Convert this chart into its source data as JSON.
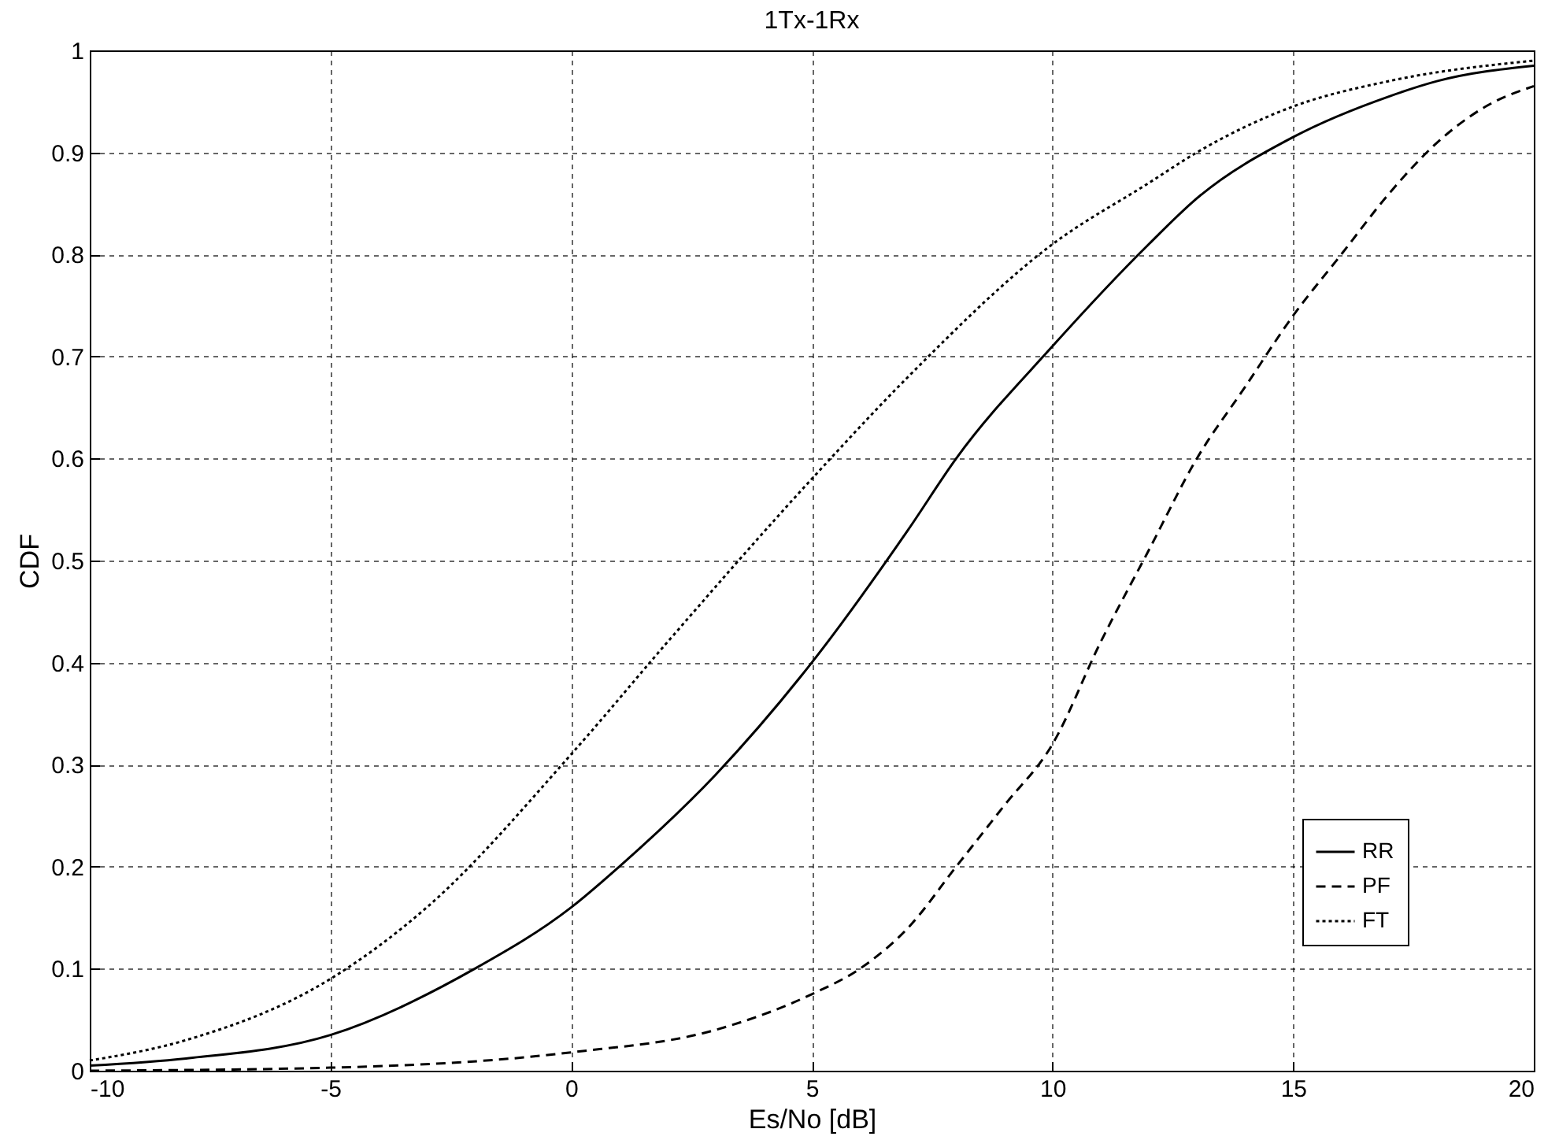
{
  "chart_data": {
    "type": "line",
    "title": "1Tx-1Rx",
    "xlabel": "Es/No [dB]",
    "ylabel": "CDF",
    "xlim": [
      -10,
      20
    ],
    "xticks": [
      -10,
      -5,
      0,
      5,
      10,
      15,
      20
    ],
    "ylim": [
      0,
      1
    ],
    "yticks": [
      0,
      0.1,
      0.2,
      0.3,
      0.4,
      0.5,
      0.6,
      0.7,
      0.8,
      0.9,
      1
    ],
    "grid": true,
    "legend": "bottom right",
    "marker": "none",
    "series": [
      {
        "name": "RR",
        "color": "#000000",
        "line_style": "solid",
        "x": [
          -10,
          -8,
          -5,
          -2,
          0,
          1,
          3,
          5,
          7,
          8,
          10,
          12,
          13,
          15,
          17,
          18,
          20
        ],
        "values": [
          0.005,
          0.012,
          0.035,
          0.1,
          0.16,
          0.2,
          0.29,
          0.4,
          0.53,
          0.6,
          0.71,
          0.81,
          0.855,
          0.915,
          0.955,
          0.97,
          0.985
        ]
      },
      {
        "name": "PF",
        "color": "#000000",
        "line_style": "dashed",
        "x": [
          -10,
          -5,
          0,
          3,
          5,
          6,
          7,
          8,
          9,
          10,
          11,
          12,
          13,
          14,
          15,
          16,
          17,
          18,
          19,
          20
        ],
        "values": [
          0.0,
          0.003,
          0.018,
          0.04,
          0.075,
          0.1,
          0.14,
          0.2,
          0.26,
          0.32,
          0.42,
          0.51,
          0.6,
          0.67,
          0.74,
          0.8,
          0.86,
          0.91,
          0.945,
          0.965
        ]
      },
      {
        "name": "FT",
        "color": "#000000",
        "line_style": "dotted",
        "x": [
          -10,
          -8,
          -5,
          -3,
          0,
          2,
          5,
          7,
          10,
          12,
          13,
          15,
          17,
          20
        ],
        "values": [
          0.01,
          0.03,
          0.09,
          0.16,
          0.31,
          0.42,
          0.58,
          0.68,
          0.81,
          0.87,
          0.9,
          0.945,
          0.97,
          0.99
        ]
      }
    ]
  }
}
